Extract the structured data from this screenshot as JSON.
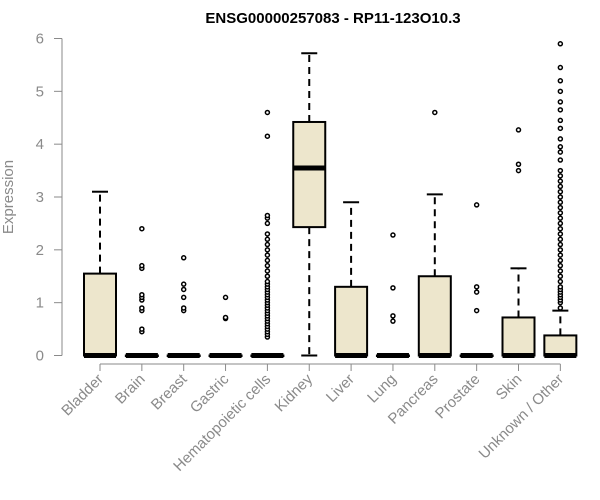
{
  "chart_data": {
    "type": "box",
    "title": "ENSG00000257083 - RP11-123O10.3",
    "xlabel": "",
    "ylabel": "Expression",
    "ylim": [
      0,
      6
    ],
    "yticks": [
      0,
      1,
      2,
      3,
      4,
      5,
      6
    ],
    "grid": false,
    "legend": "none",
    "colors": {
      "box_fill": "#ede6cc",
      "box_stroke": "#000000",
      "axis": "#8a8a8a"
    },
    "categories": [
      "Bladder",
      "Brain",
      "Breast",
      "Gastric",
      "Hematopoietic cells",
      "Kidney",
      "Liver",
      "Lung",
      "Pancreas",
      "Prostate",
      "Skin",
      "Unknown / Other"
    ],
    "boxes": [
      {
        "min": 0,
        "q1": 0,
        "median": 0,
        "q3": 1.55,
        "max": 3.1,
        "outliers": []
      },
      {
        "min": 0,
        "q1": 0,
        "median": 0,
        "q3": 0,
        "max": 0,
        "outliers": [
          0.45,
          0.5,
          0.85,
          0.9,
          1.05,
          1.1,
          1.15,
          1.65,
          1.7,
          2.4
        ]
      },
      {
        "min": 0,
        "q1": 0,
        "median": 0,
        "q3": 0,
        "max": 0,
        "outliers": [
          0.85,
          0.9,
          1.1,
          1.25,
          1.35,
          1.85
        ]
      },
      {
        "min": 0,
        "q1": 0,
        "median": 0,
        "q3": 0,
        "max": 0,
        "outliers": [
          0.7,
          0.72,
          1.1
        ]
      },
      {
        "min": 0,
        "q1": 0,
        "median": 0,
        "q3": 0,
        "max": 0,
        "outliers": [
          0.35,
          0.4,
          0.45,
          0.5,
          0.55,
          0.6,
          0.65,
          0.7,
          0.75,
          0.8,
          0.85,
          0.9,
          0.95,
          1.0,
          1.05,
          1.1,
          1.15,
          1.2,
          1.25,
          1.3,
          1.35,
          1.4,
          1.5,
          1.6,
          1.7,
          1.8,
          1.9,
          2.0,
          2.1,
          2.2,
          2.3,
          2.5,
          2.6,
          2.65,
          4.15,
          4.6
        ]
      },
      {
        "min": 0,
        "q1": 2.43,
        "median": 3.55,
        "q3": 4.42,
        "max": 5.72,
        "outliers": []
      },
      {
        "min": 0,
        "q1": 0,
        "median": 0,
        "q3": 1.3,
        "max": 2.9,
        "outliers": []
      },
      {
        "min": 0,
        "q1": 0,
        "median": 0,
        "q3": 0,
        "max": 0,
        "outliers": [
          0.65,
          0.75,
          1.28,
          2.28
        ]
      },
      {
        "min": 0,
        "q1": 0,
        "median": 0,
        "q3": 1.5,
        "max": 3.05,
        "outliers": [
          4.6
        ]
      },
      {
        "min": 0,
        "q1": 0,
        "median": 0,
        "q3": 0,
        "max": 0,
        "outliers": [
          0.85,
          1.2,
          1.3,
          2.85
        ]
      },
      {
        "min": 0,
        "q1": 0,
        "median": 0,
        "q3": 0.72,
        "max": 1.65,
        "outliers": [
          3.5,
          3.62,
          4.27
        ]
      },
      {
        "min": 0,
        "q1": 0,
        "median": 0,
        "q3": 0.38,
        "max": 0.85,
        "outliers": [
          0.9,
          1.0,
          1.05,
          1.1,
          1.15,
          1.2,
          1.25,
          1.3,
          1.4,
          1.5,
          1.6,
          1.7,
          1.8,
          1.9,
          2.0,
          2.1,
          2.2,
          2.3,
          2.4,
          2.5,
          2.6,
          2.7,
          2.8,
          2.9,
          3.0,
          3.1,
          3.2,
          3.3,
          3.4,
          3.5,
          3.7,
          3.85,
          3.95,
          4.1,
          4.3,
          4.45,
          4.65,
          4.8,
          5.0,
          5.2,
          5.45,
          5.9
        ]
      }
    ]
  }
}
